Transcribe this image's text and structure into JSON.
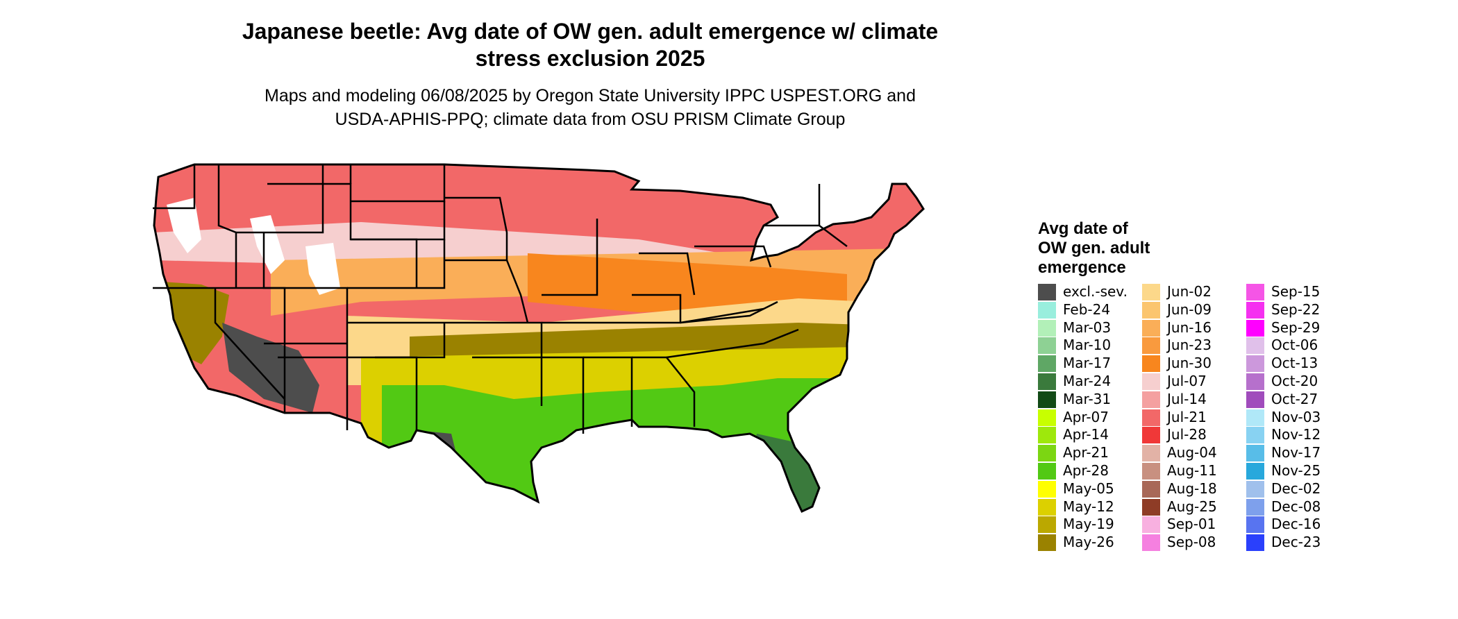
{
  "title_line1": "Japanese beetle: Avg date of OW gen. adult emergence w/ climate",
  "title_line2": "stress exclusion 2025",
  "subtitle_line1": "Maps and modeling 06/08/2025 by Oregon State University IPPC USPEST.ORG and",
  "subtitle_line2": "USDA-APHIS-PPQ; climate data from OSU PRISM Climate Group",
  "legend": {
    "title_line1": "Avg date of",
    "title_line2": "OW gen. adult",
    "title_line3": "emergence",
    "items": [
      {
        "label": "excl.-sev.",
        "color": "#4d4d4d"
      },
      {
        "label": "Feb-24",
        "color": "#99eedd"
      },
      {
        "label": "Mar-03",
        "color": "#b2f0b8"
      },
      {
        "label": "Mar-10",
        "color": "#8ed194"
      },
      {
        "label": "Mar-17",
        "color": "#5fa765"
      },
      {
        "label": "Mar-24",
        "color": "#3a7a3c"
      },
      {
        "label": "Mar-31",
        "color": "#124a16"
      },
      {
        "label": "Apr-07",
        "color": "#c8ff00"
      },
      {
        "label": "Apr-14",
        "color": "#9ee80c"
      },
      {
        "label": "Apr-21",
        "color": "#7cd612"
      },
      {
        "label": "Apr-28",
        "color": "#52c914"
      },
      {
        "label": "May-05",
        "color": "#ffff00"
      },
      {
        "label": "May-12",
        "color": "#dcd000"
      },
      {
        "label": "May-19",
        "color": "#bba800"
      },
      {
        "label": "May-26",
        "color": "#9a8200"
      },
      {
        "label": "Jun-02",
        "color": "#fcd88a"
      },
      {
        "label": "Jun-09",
        "color": "#fbc56e"
      },
      {
        "label": "Jun-16",
        "color": "#faae58"
      },
      {
        "label": "Jun-23",
        "color": "#f99a3e"
      },
      {
        "label": "Jun-30",
        "color": "#f8861e"
      },
      {
        "label": "Jul-07",
        "color": "#f6cfcf"
      },
      {
        "label": "Jul-14",
        "color": "#f4a0a0"
      },
      {
        "label": "Jul-21",
        "color": "#f26868"
      },
      {
        "label": "Jul-28",
        "color": "#f03838"
      },
      {
        "label": "Aug-04",
        "color": "#e2b2a6"
      },
      {
        "label": "Aug-11",
        "color": "#c89080"
      },
      {
        "label": "Aug-18",
        "color": "#a86858"
      },
      {
        "label": "Aug-25",
        "color": "#8e3c26"
      },
      {
        "label": "Sep-01",
        "color": "#f8b0e0"
      },
      {
        "label": "Sep-08",
        "color": "#f580e0"
      },
      {
        "label": "Sep-15",
        "color": "#f555e6"
      },
      {
        "label": "Sep-22",
        "color": "#f530f0"
      },
      {
        "label": "Sep-29",
        "color": "#ff00ff"
      },
      {
        "label": "Oct-06",
        "color": "#e0c0ea"
      },
      {
        "label": "Oct-13",
        "color": "#cc98dc"
      },
      {
        "label": "Oct-20",
        "color": "#b670cc"
      },
      {
        "label": "Oct-27",
        "color": "#a04cbc"
      },
      {
        "label": "Nov-03",
        "color": "#b0e8f8"
      },
      {
        "label": "Nov-12",
        "color": "#88d2f2"
      },
      {
        "label": "Nov-17",
        "color": "#58bde8"
      },
      {
        "label": "Nov-25",
        "color": "#28a8dc"
      },
      {
        "label": "Dec-02",
        "color": "#a0c0ec"
      },
      {
        "label": "Dec-08",
        "color": "#7ea0ec"
      },
      {
        "label": "Dec-16",
        "color": "#5874f0"
      },
      {
        "label": "Dec-23",
        "color": "#2a40fc"
      }
    ]
  },
  "map_bands": [
    {
      "region": "northern-tier",
      "color": "#f26868"
    },
    {
      "region": "northern-mountains",
      "color": "#f6cfcf"
    },
    {
      "region": "high-mountains",
      "color": "#ffffff"
    },
    {
      "region": "central-plains",
      "color": "#faae58"
    },
    {
      "region": "midwest",
      "color": "#f8861e"
    },
    {
      "region": "upper-south",
      "color": "#fcd88a"
    },
    {
      "region": "appalachian-south",
      "color": "#9a8200"
    },
    {
      "region": "deep-south",
      "color": "#dcd000"
    },
    {
      "region": "gulf-coast",
      "color": "#52c914"
    },
    {
      "region": "south-florida",
      "color": "#3a7a3c"
    },
    {
      "region": "desert-excluded",
      "color": "#4d4d4d"
    }
  ]
}
